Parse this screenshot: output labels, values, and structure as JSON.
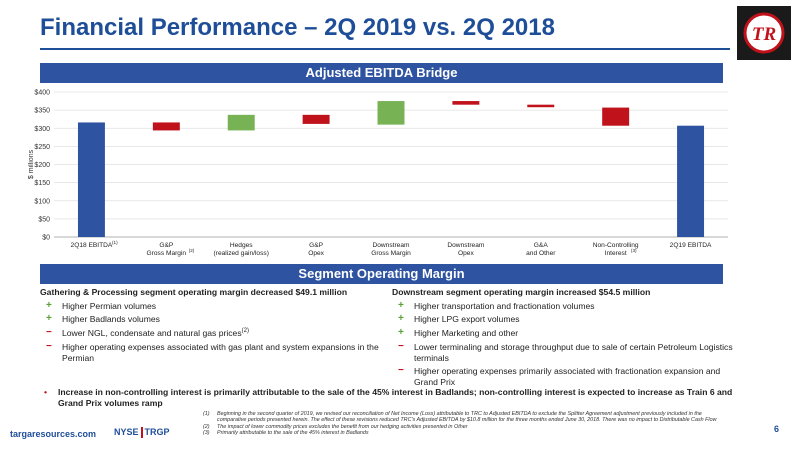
{
  "title": "Financial Performance – 2Q 2019 vs. 2Q 2018",
  "logo_text": "TR",
  "band_top": "Adjusted EBITDA Bridge",
  "band_mid": "Segment Operating Margin",
  "chart_data": {
    "type": "bar",
    "subtype": "waterfall",
    "ylabel": "$ millions",
    "ylim": [
      0,
      400
    ],
    "yticks": [
      "$0",
      "$50",
      "$100",
      "$150",
      "$200",
      "$250",
      "$300",
      "$350",
      "$400"
    ],
    "grid": true,
    "categories": [
      {
        "lines": [
          "2Q18 EBITDA"
        ],
        "sup": "(1)"
      },
      {
        "lines": [
          "G&P",
          "Gross Margin"
        ],
        "sup": "(2)"
      },
      {
        "lines": [
          "Hedges",
          "(realized gain/loss)"
        ],
        "sup": ""
      },
      {
        "lines": [
          "G&P",
          "Opex"
        ],
        "sup": ""
      },
      {
        "lines": [
          "Downstream",
          "Gross Margin"
        ],
        "sup": ""
      },
      {
        "lines": [
          "Downstream",
          "Opex"
        ],
        "sup": ""
      },
      {
        "lines": [
          "G&A",
          "and Other"
        ],
        "sup": ""
      },
      {
        "lines": [
          "Non-Controlling",
          "Interest"
        ],
        "sup": "(3)"
      },
      {
        "lines": [
          "2Q19 EBITDA"
        ],
        "sup": ""
      }
    ],
    "bars": [
      {
        "start": 0,
        "end": 316,
        "kind": "total"
      },
      {
        "start": 316,
        "end": 294,
        "kind": "decrease"
      },
      {
        "start": 294,
        "end": 337,
        "kind": "increase"
      },
      {
        "start": 337,
        "end": 312,
        "kind": "decrease"
      },
      {
        "start": 310,
        "end": 375,
        "kind": "increase"
      },
      {
        "start": 375,
        "end": 365,
        "kind": "decrease"
      },
      {
        "start": 365,
        "end": 358,
        "kind": "decrease"
      },
      {
        "start": 357,
        "end": 307,
        "kind": "decrease"
      },
      {
        "start": 0,
        "end": 307,
        "kind": "total"
      }
    ],
    "colors": {
      "total": "#2e53a1",
      "increase": "#77b255",
      "decrease": "#c0121b"
    }
  },
  "segments": {
    "left": {
      "heading": "Gathering & Processing segment operating margin decreased $49.1 million",
      "items": [
        {
          "sign": "+",
          "text": "Higher Permian volumes",
          "sup": ""
        },
        {
          "sign": "+",
          "text": "Higher Badlands volumes",
          "sup": ""
        },
        {
          "sign": "−",
          "text": "Lower NGL, condensate and natural gas prices",
          "sup": "(2)"
        },
        {
          "sign": "−",
          "text": "Higher operating expenses associated with gas plant and system expansions in the Permian",
          "sup": ""
        }
      ]
    },
    "right": {
      "heading": "Downstream segment operating margin increased $54.5 million",
      "items": [
        {
          "sign": "+",
          "text": "Higher transportation and fractionation volumes",
          "sup": ""
        },
        {
          "sign": "+",
          "text": "Higher LPG export volumes",
          "sup": ""
        },
        {
          "sign": "+",
          "text": "Higher Marketing and other",
          "sup": ""
        },
        {
          "sign": "−",
          "text": "Lower terminaling and storage throughput due to sale of certain Petroleum Logistics terminals",
          "sup": ""
        },
        {
          "sign": "−",
          "text": "Higher operating expenses primarily associated with fractionation expansion and Grand Prix",
          "sup": ""
        }
      ]
    }
  },
  "bullet": "Increase in non-controlling interest is primarily attributable to the sale of the 45% interest in Badlands; non-controlling interest is expected to increase as Train 6 and Grand Prix volumes ramp",
  "footer": {
    "site": "targaresources.com",
    "exchange": "NYSE",
    "symbol": "TRGP",
    "page": "6"
  },
  "footnotes": [
    {
      "num": "(1)",
      "text": "Beginning in the second quarter of 2019, we revised our reconciliation of Net Income (Loss) attributable to TRC to Adjusted EBITDA to exclude the Splitter Agreement adjustment previously included in the comparative periods presented herein. The effect of these revisions reduced TRC's Adjusted EBITDA by $10.8 million for the three months ended June 30, 2018. There was no impact to Distributable Cash Flow"
    },
    {
      "num": "(2)",
      "text": "The impact of lower commodity prices excludes the benefit from our hedging activities presented in Other"
    },
    {
      "num": "(3)",
      "text": "Primarily attributable to the sale of the 45% interest in Badlands"
    }
  ]
}
